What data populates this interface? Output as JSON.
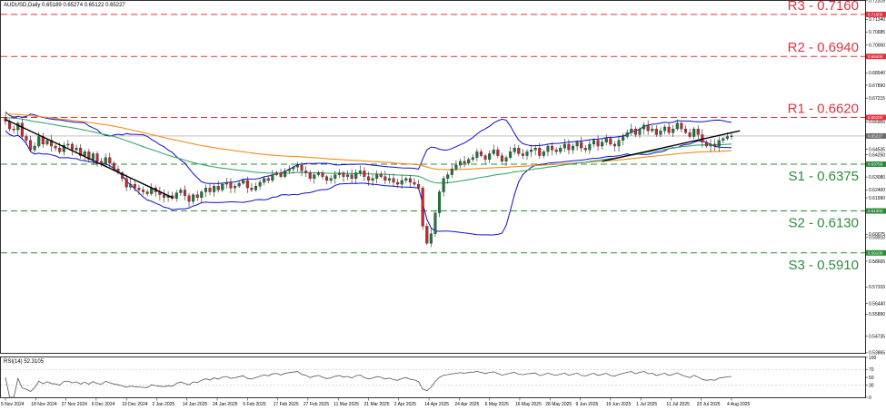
{
  "header": {
    "symbol_info": "AUDUSD,Daily  0.65189 0.65274 0.65122 0.65227",
    "rsi_info": "RSI(14) 52.3105"
  },
  "colors": {
    "resistance": "#e0333d",
    "support": "#2e8b3a",
    "bollinger": "#1010c8",
    "ma_orange": "#f28c1c",
    "ma_green": "#3aa96a",
    "trendline": "#000000",
    "candle_up": "#1a7a3a",
    "candle_down": "#c8262e",
    "rsi_line": "#555555"
  },
  "chart_data": {
    "type": "candlestick",
    "symbol": "AUDUSD",
    "timeframe": "Daily",
    "ylim": [
      0.5386,
      0.7231
    ],
    "y_ticks": [
      "0.72315",
      "0.71610",
      "0.71340",
      "0.70685",
      "0.70000",
      "0.69400",
      "0.68540",
      "0.67890",
      "0.67215",
      "0.66200",
      "0.65965",
      "0.65227",
      "0.64535",
      "0.64250",
      "0.63750",
      "0.63080",
      "0.62400",
      "0.61990",
      "0.61300",
      "0.60075",
      "0.59910",
      "0.59100",
      "0.58665",
      "0.57315",
      "0.56440",
      "0.55890",
      "0.54735",
      "0.53865"
    ],
    "x_ticks": [
      "5 Nov 2024",
      "18 Nov 2024",
      "27 Nov 2024",
      "6 Dec 2024",
      "19 Dec 2024",
      "2 Jan 2025",
      "14 Jan 2025",
      "24 Jan 2025",
      "5 Feb 2025",
      "17 Feb 2025",
      "27 Feb 2025",
      "11 Mar 2025",
      "21 Mar 2025",
      "2 Apr 2025",
      "14 Apr 2025",
      "24 Apr 2025",
      "6 May 2025",
      "16 May 2025",
      "28 May 2025",
      "9 Jun 2025",
      "19 Jun 2025",
      "1 Jul 2025",
      "11 Jul 2025",
      "23 Jul 2025",
      "4 Aug 2025"
    ],
    "levels": [
      {
        "name": "R3 - 0.7160",
        "value": 0.716,
        "tag": "0.71600",
        "kind": "resistance"
      },
      {
        "name": "R2 - 0.6940",
        "value": 0.694,
        "tag": "0.69400",
        "kind": "resistance"
      },
      {
        "name": "R1 - 0.6620",
        "value": 0.662,
        "tag": "0.66200",
        "kind": "resistance"
      },
      {
        "name": "S1 - 0.6375",
        "value": 0.6375,
        "tag": "0.63750",
        "kind": "support"
      },
      {
        "name": "S2 - 0.6130",
        "value": 0.613,
        "tag": "0.61300",
        "kind": "support"
      },
      {
        "name": "S3 - 0.5910",
        "value": 0.591,
        "tag": "0.59100",
        "kind": "support"
      }
    ],
    "current_price": {
      "value": 0.65227,
      "tag": "0.65227"
    },
    "closes": [
      0.66,
      0.656,
      0.6555,
      0.659,
      0.652,
      0.65,
      0.645,
      0.647,
      0.652,
      0.648,
      0.65,
      0.647,
      0.646,
      0.644,
      0.6475,
      0.648,
      0.645,
      0.646,
      0.642,
      0.644,
      0.64,
      0.643,
      0.639,
      0.6375,
      0.641,
      0.638,
      0.635,
      0.633,
      0.63,
      0.6255,
      0.627,
      0.625,
      0.624,
      0.623,
      0.622,
      0.625,
      0.623,
      0.6215,
      0.62,
      0.621,
      0.6195,
      0.6225,
      0.624,
      0.621,
      0.618,
      0.6215,
      0.62,
      0.623,
      0.625,
      0.623,
      0.626,
      0.624,
      0.627,
      0.628,
      0.625,
      0.626,
      0.6275,
      0.629,
      0.625,
      0.624,
      0.626,
      0.628,
      0.63,
      0.629,
      0.632,
      0.633,
      0.631,
      0.634,
      0.635,
      0.636,
      0.637,
      0.634,
      0.633,
      0.63,
      0.632,
      0.633,
      0.631,
      0.629,
      0.63,
      0.632,
      0.633,
      0.631,
      0.632,
      0.63,
      0.633,
      0.634,
      0.631,
      0.629,
      0.63,
      0.632,
      0.631,
      0.629,
      0.63,
      0.628,
      0.627,
      0.629,
      0.63,
      0.628,
      0.627,
      0.625,
      0.605,
      0.596,
      0.601,
      0.612,
      0.623,
      0.63,
      0.632,
      0.635,
      0.637,
      0.639,
      0.638,
      0.64,
      0.641,
      0.644,
      0.642,
      0.64,
      0.643,
      0.645,
      0.642,
      0.639,
      0.641,
      0.644,
      0.646,
      0.643,
      0.642,
      0.644,
      0.645,
      0.646,
      0.642,
      0.644,
      0.647,
      0.645,
      0.644,
      0.646,
      0.648,
      0.645,
      0.647,
      0.649,
      0.646,
      0.645,
      0.648,
      0.65,
      0.647,
      0.649,
      0.651,
      0.648,
      0.647,
      0.65,
      0.652,
      0.654,
      0.656,
      0.653,
      0.656,
      0.658,
      0.655,
      0.656,
      0.653,
      0.655,
      0.657,
      0.654,
      0.656,
      0.659,
      0.656,
      0.654,
      0.652,
      0.656,
      0.653,
      0.649,
      0.647,
      0.648,
      0.647,
      0.65,
      0.651,
      0.652,
      0.6523
    ],
    "rsi": {
      "name": "RSI(14)",
      "ylim": [
        0,
        100
      ],
      "y_ticks": [
        "100",
        "70",
        "50",
        "30",
        "0"
      ],
      "last": 52.3105
    }
  }
}
